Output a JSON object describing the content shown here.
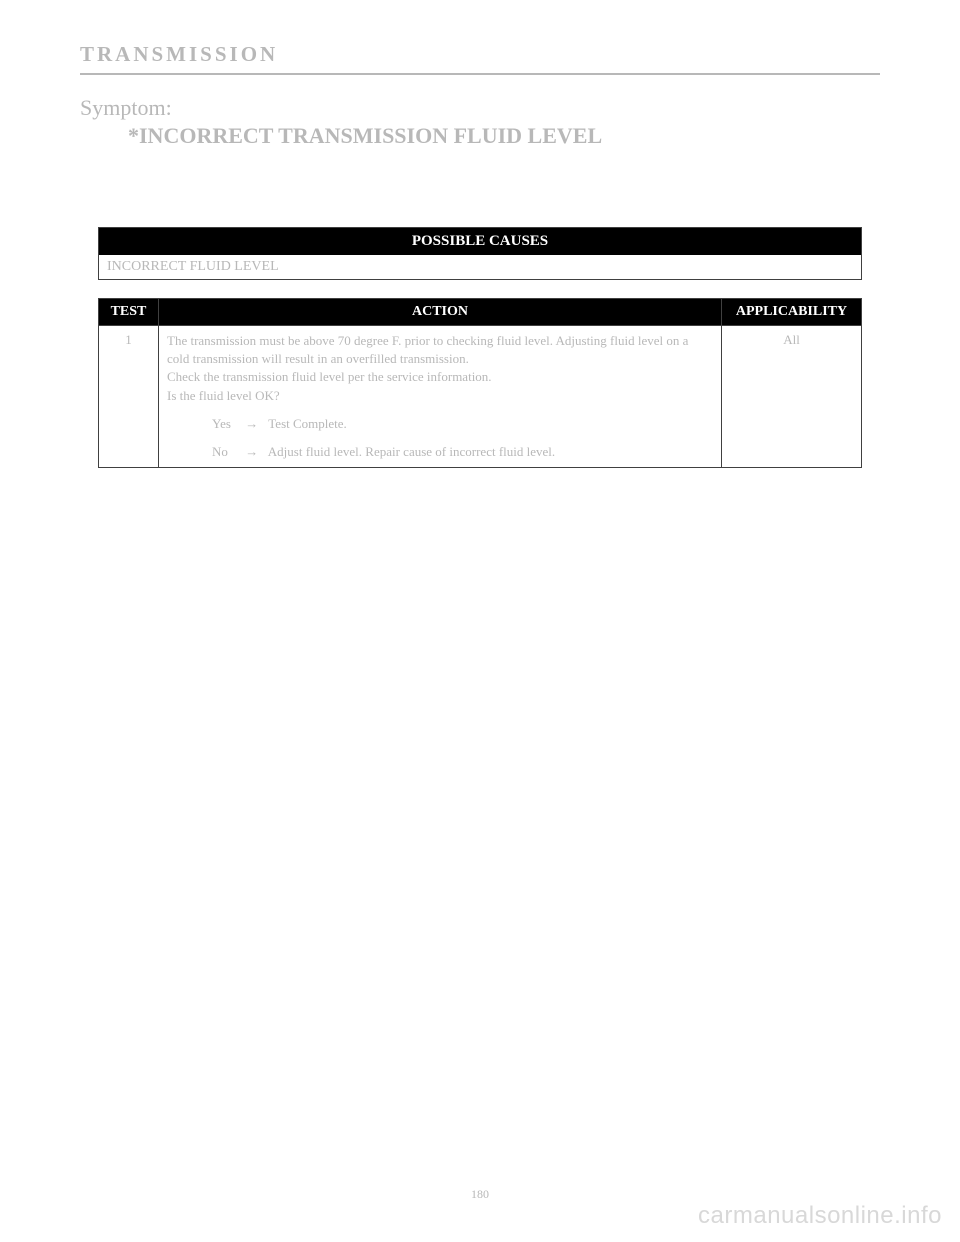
{
  "header": {
    "section_name": "TRANSMISSION"
  },
  "symptom": {
    "label": "Symptom:",
    "title": "*INCORRECT TRANSMISSION FLUID LEVEL"
  },
  "causes_table": {
    "header": "POSSIBLE CAUSES",
    "rows": [
      "INCORRECT FLUID LEVEL"
    ]
  },
  "action_table": {
    "columns": [
      "TEST",
      "ACTION",
      "APPLICABILITY"
    ],
    "rows": [
      {
        "test": "1",
        "action_intro": "The transmission must be above 70 degree F. prior to checking fluid level. Adjusting fluid level on a cold transmission will result in an overfilled transmission.",
        "action_check": "Check the transmission fluid level per the service information.",
        "action_question": "Is the fluid level OK?",
        "yes_label": "Yes",
        "yes_text": "Test Complete.",
        "no_label": "No",
        "no_text": "Adjust fluid level. Repair cause of incorrect fluid level.",
        "arrow": "→",
        "applicability": "All"
      }
    ]
  },
  "page_number": "180",
  "watermark": "carmanualsonline.info"
}
